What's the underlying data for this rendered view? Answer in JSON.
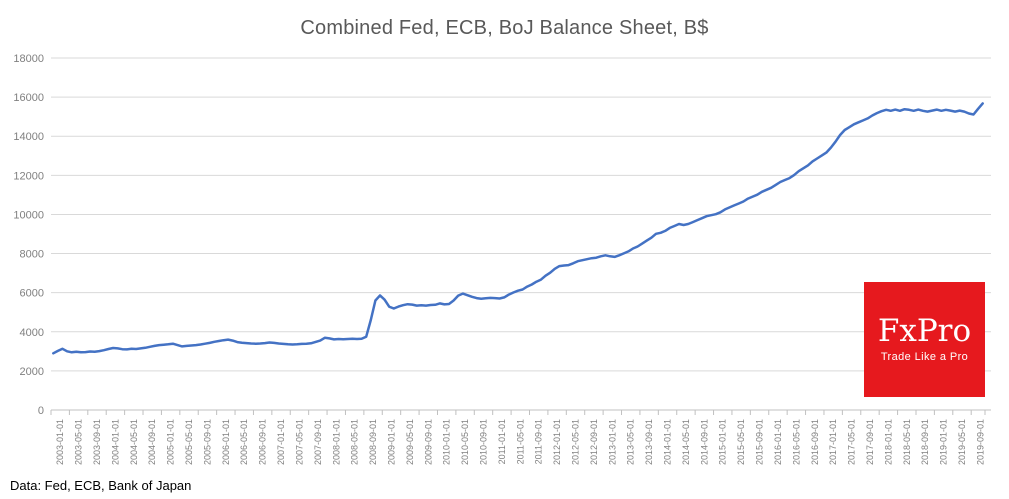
{
  "header": {
    "title": "Combined Fed, ECB, BoJ Balance Sheet, B$"
  },
  "footer": {
    "source": "Data: Fed, ECB, Bank of Japan"
  },
  "logo": {
    "title": "FxPro",
    "tagline": "Trade Like a Pro",
    "background": "#e6191e"
  },
  "chart_data": {
    "type": "line",
    "title": "Combined Fed, ECB, BoJ Balance Sheet, B$",
    "xlabel": "",
    "ylabel": "",
    "ylim": [
      0,
      18000
    ],
    "y_ticks": [
      0,
      2000,
      4000,
      6000,
      8000,
      10000,
      12000,
      14000,
      16000,
      18000
    ],
    "grid": "horizontal",
    "legend": "none",
    "line_color": "#4472C4",
    "grid_color": "#D9D9D9",
    "axis_line_color": "#C0C0C0",
    "axis_text_color": "#808080",
    "title_color": "#595959",
    "x_tick_labels": [
      "2003-01-01",
      "2003-05-01",
      "2003-09-01",
      "2004-01-01",
      "2004-05-01",
      "2004-09-01",
      "2005-01-01",
      "2005-05-01",
      "2005-09-01",
      "2006-01-01",
      "2006-05-01",
      "2006-09-01",
      "2007-01-01",
      "2007-05-01",
      "2007-09-01",
      "2008-01-01",
      "2008-05-01",
      "2008-09-01",
      "2009-01-01",
      "2009-05-01",
      "2009-09-01",
      "2010-01-01",
      "2010-05-01",
      "2010-09-01",
      "2011-01-01",
      "2011-05-01",
      "2011-09-01",
      "2012-01-01",
      "2012-05-01",
      "2012-09-01",
      "2013-01-01",
      "2013-05-01",
      "2013-09-01",
      "2014-01-01",
      "2014-05-01",
      "2014-09-01",
      "2015-01-01",
      "2015-05-01",
      "2015-09-01",
      "2016-01-01",
      "2016-05-01",
      "2016-09-01",
      "2017-01-01",
      "2017-05-01",
      "2017-09-01",
      "2018-01-01",
      "2018-05-01",
      "2018-09-01",
      "2019-01-01",
      "2019-05-01",
      "2019-09-01"
    ],
    "series": [
      {
        "name": "Combined Fed, ECB, BoJ balance sheet, B$",
        "start_month": "2003-01",
        "frequency": "monthly",
        "values": [
          2900,
          3020,
          3130,
          3000,
          2950,
          2980,
          2950,
          2960,
          2990,
          2980,
          3010,
          3060,
          3120,
          3170,
          3150,
          3110,
          3100,
          3130,
          3120,
          3150,
          3180,
          3230,
          3280,
          3320,
          3340,
          3360,
          3390,
          3320,
          3250,
          3280,
          3300,
          3320,
          3350,
          3390,
          3430,
          3490,
          3530,
          3570,
          3600,
          3550,
          3470,
          3440,
          3420,
          3400,
          3390,
          3400,
          3420,
          3450,
          3430,
          3400,
          3380,
          3360,
          3350,
          3360,
          3380,
          3390,
          3410,
          3480,
          3550,
          3690,
          3660,
          3610,
          3630,
          3620,
          3630,
          3640,
          3630,
          3640,
          3750,
          4600,
          5600,
          5860,
          5640,
          5280,
          5190,
          5290,
          5360,
          5410,
          5390,
          5340,
          5360,
          5340,
          5370,
          5380,
          5450,
          5400,
          5420,
          5600,
          5850,
          5950,
          5870,
          5790,
          5720,
          5690,
          5710,
          5730,
          5720,
          5700,
          5760,
          5900,
          6010,
          6100,
          6160,
          6310,
          6420,
          6560,
          6670,
          6870,
          7020,
          7220,
          7360,
          7390,
          7410,
          7500,
          7610,
          7660,
          7710,
          7760,
          7790,
          7860,
          7910,
          7860,
          7830,
          7910,
          8010,
          8110,
          8260,
          8360,
          8510,
          8660,
          8810,
          9010,
          9060,
          9160,
          9310,
          9410,
          9510,
          9460,
          9510,
          9610,
          9710,
          9810,
          9910,
          9960,
          10010,
          10110,
          10260,
          10360,
          10460,
          10560,
          10660,
          10810,
          10910,
          11010,
          11160,
          11260,
          11360,
          11510,
          11660,
          11760,
          11860,
          12010,
          12210,
          12360,
          12510,
          12710,
          12860,
          13010,
          13160,
          13420,
          13720,
          14060,
          14320,
          14460,
          14610,
          14710,
          14810,
          14910,
          15060,
          15180,
          15280,
          15350,
          15300,
          15360,
          15300,
          15380,
          15350,
          15300,
          15360,
          15300,
          15260,
          15310,
          15360,
          15300,
          15350,
          15310,
          15260,
          15310,
          15260,
          15160,
          15110,
          15400,
          15680
        ]
      }
    ]
  }
}
